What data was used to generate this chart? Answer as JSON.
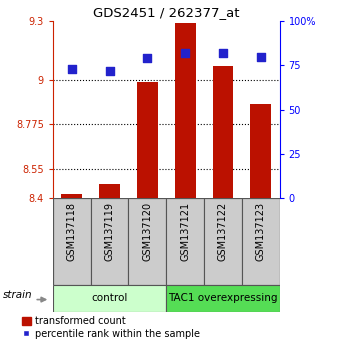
{
  "title": "GDS2451 / 262377_at",
  "samples": [
    "GSM137118",
    "GSM137119",
    "GSM137120",
    "GSM137121",
    "GSM137122",
    "GSM137123"
  ],
  "bar_values": [
    8.42,
    8.47,
    8.99,
    9.29,
    9.07,
    8.88
  ],
  "dot_values": [
    73,
    72,
    79,
    82,
    82,
    80
  ],
  "ylim_left": [
    8.4,
    9.3
  ],
  "ylim_right": [
    0,
    100
  ],
  "yticks_left": [
    8.4,
    8.55,
    8.775,
    9.0,
    9.3
  ],
  "ytick_labels_left": [
    "8.4",
    "8.55",
    "8.775",
    "9",
    "9.3"
  ],
  "yticks_right": [
    0,
    25,
    50,
    75,
    100
  ],
  "ytick_labels_right": [
    "0",
    "25",
    "50",
    "75",
    "100%"
  ],
  "grid_ticks": [
    8.55,
    8.775,
    9.0
  ],
  "bar_color": "#bb1100",
  "dot_color": "#2222cc",
  "bar_bottom": 8.4,
  "groups": [
    {
      "label": "control",
      "start": 0,
      "end": 3,
      "color": "#ccffcc"
    },
    {
      "label": "TAC1 overexpressing",
      "start": 3,
      "end": 6,
      "color": "#55dd55"
    }
  ],
  "strain_label": "strain",
  "legend_bar_label": "transformed count",
  "legend_dot_label": "percentile rank within the sample",
  "bar_width": 0.55,
  "dot_size": 30
}
